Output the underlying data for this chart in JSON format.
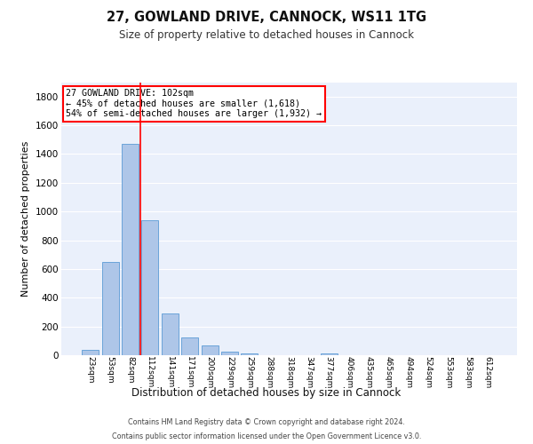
{
  "title_line1": "27, GOWLAND DRIVE, CANNOCK, WS11 1TG",
  "title_line2": "Size of property relative to detached houses in Cannock",
  "xlabel": "Distribution of detached houses by size in Cannock",
  "ylabel": "Number of detached properties",
  "bar_labels": [
    "23sqm",
    "53sqm",
    "82sqm",
    "112sqm",
    "141sqm",
    "171sqm",
    "200sqm",
    "229sqm",
    "259sqm",
    "288sqm",
    "318sqm",
    "347sqm",
    "377sqm",
    "406sqm",
    "435sqm",
    "465sqm",
    "494sqm",
    "524sqm",
    "553sqm",
    "583sqm",
    "612sqm"
  ],
  "bar_values": [
    40,
    650,
    1470,
    940,
    290,
    125,
    65,
    25,
    15,
    0,
    0,
    0,
    14,
    0,
    0,
    0,
    0,
    0,
    0,
    0,
    0
  ],
  "bar_color": "#aec6e8",
  "bar_edge_color": "#5b9bd5",
  "background_color": "#eaf0fb",
  "grid_color": "#ffffff",
  "ylim": [
    0,
    1900
  ],
  "yticks": [
    0,
    200,
    400,
    600,
    800,
    1000,
    1200,
    1400,
    1600,
    1800
  ],
  "vline_x": 2.5,
  "vline_color": "red",
  "annotation_title": "27 GOWLAND DRIVE: 102sqm",
  "annotation_line1": "← 45% of detached houses are smaller (1,618)",
  "annotation_line2": "54% of semi-detached houses are larger (1,932) →",
  "annotation_box_color": "white",
  "annotation_box_edge": "red",
  "footer_line1": "Contains HM Land Registry data © Crown copyright and database right 2024.",
  "footer_line2": "Contains public sector information licensed under the Open Government Licence v3.0."
}
